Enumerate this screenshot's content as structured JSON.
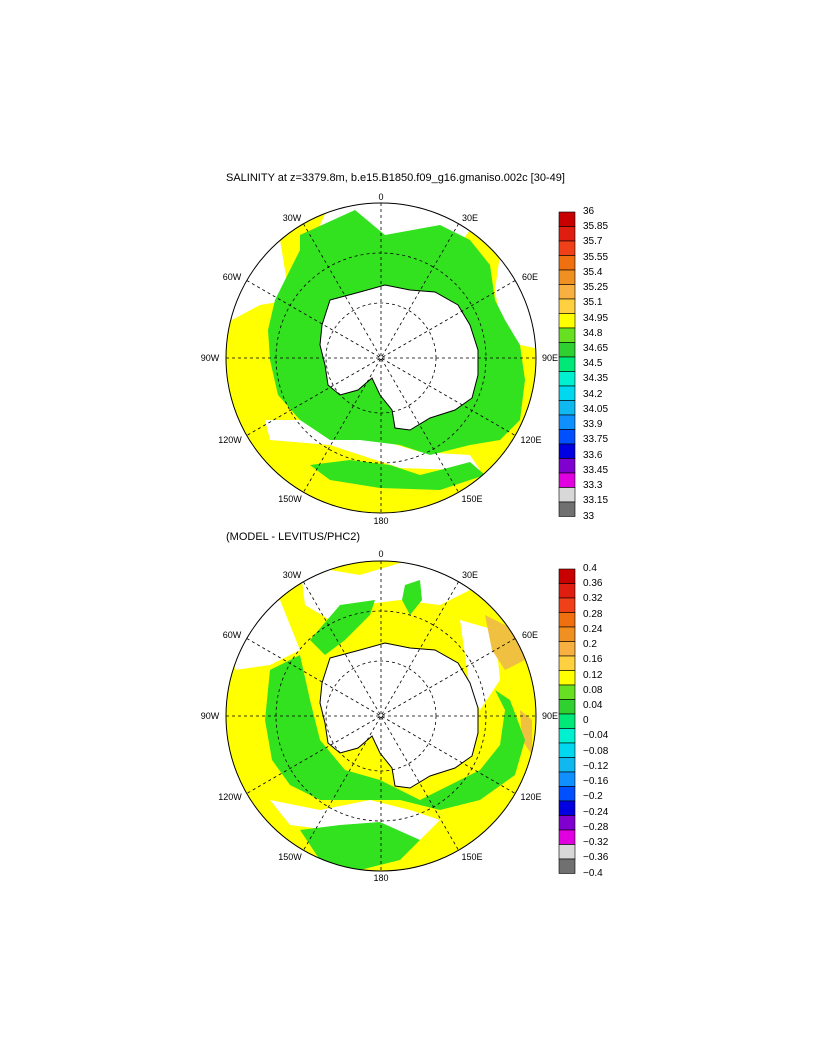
{
  "panel1": {
    "title": "SALINITY at z=3379.8m, b.e15.B1850.f09_g16.gmaniso.002c [30-49]",
    "lon_labels": [
      "0",
      "30E",
      "60E",
      "90E",
      "120E",
      "150E",
      "180",
      "150W",
      "120W",
      "90W",
      "60W",
      "30W"
    ],
    "colorbar": {
      "labels": [
        "36",
        "35.85",
        "35.7",
        "35.55",
        "35.4",
        "35.25",
        "35.1",
        "34.95",
        "34.8",
        "34.65",
        "34.5",
        "34.35",
        "34.2",
        "34.05",
        "33.9",
        "33.75",
        "33.6",
        "33.45",
        "33.3",
        "33.15",
        "33"
      ],
      "colors": [
        "#c80000",
        "#e01e10",
        "#f04018",
        "#f07010",
        "#f09020",
        "#f8b040",
        "#ffd040",
        "#ffff00",
        "#66e020",
        "#30d030",
        "#00e878",
        "#00f0d0",
        "#00d8f0",
        "#10b8f0",
        "#1090ff",
        "#0050ff",
        "#0000e0",
        "#8000d0",
        "#e000e0",
        "#d8d8d8",
        "#707070"
      ]
    }
  },
  "panel2": {
    "title": "(MODEL - LEVITUS/PHC2)",
    "lon_labels": [
      "0",
      "30E",
      "60E",
      "90E",
      "120E",
      "150E",
      "180",
      "150W",
      "120W",
      "90W",
      "60W",
      "30W"
    ],
    "colorbar": {
      "labels": [
        "0.4",
        "0.36",
        "0.32",
        "0.28",
        "0.24",
        "0.2",
        "0.16",
        "0.12",
        "0.08",
        "0.04",
        "0",
        "−0.04",
        "−0.08",
        "−0.12",
        "−0.16",
        "−0.2",
        "−0.24",
        "−0.28",
        "−0.32",
        "−0.36",
        "−0.4"
      ],
      "colors": [
        "#c80000",
        "#e01e10",
        "#f04018",
        "#f07010",
        "#f09020",
        "#f8b040",
        "#ffd040",
        "#ffff00",
        "#66e020",
        "#30d030",
        "#00e878",
        "#00f0d0",
        "#00d8f0",
        "#10b8f0",
        "#1090ff",
        "#0050ff",
        "#0000e0",
        "#8000d0",
        "#e000e0",
        "#d8d8d8",
        "#707070"
      ]
    }
  },
  "colors": {
    "land": "#ffffff",
    "yellow": "#ffff00",
    "green": "#33e21f",
    "orange": "#f0c040"
  }
}
